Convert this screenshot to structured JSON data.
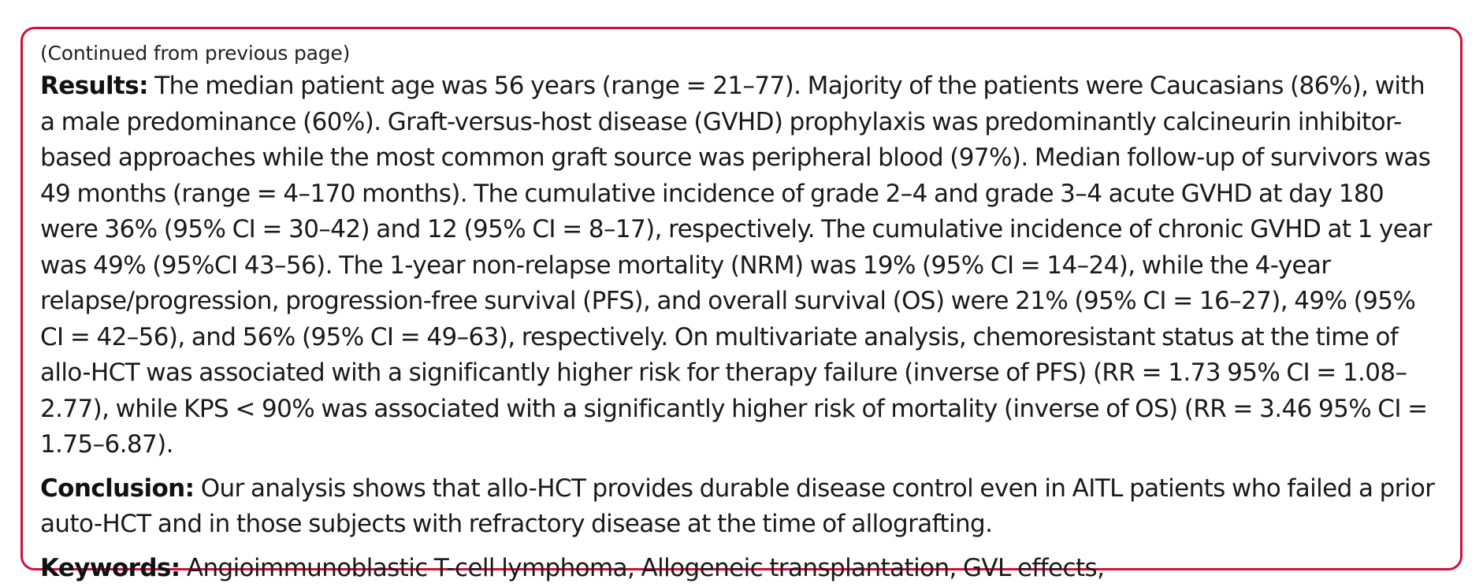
{
  "continued_note": "(Continued from previous page)",
  "results": {
    "label": "Results:",
    "text": "The median patient age was 56 years (range = 21–77). Majority of the patients were Caucasians (86%), with a male predominance (60%). Graft-versus-host disease (GVHD) prophylaxis was predominantly calcineurin inhibitor-based approaches while the most common graft source was peripheral blood (97%). Median follow-up of survivors was 49 months (range = 4–170 months). The cumulative incidence of grade 2–4 and grade 3–4 acute GVHD at day 180 were 36% (95% CI = 30–42) and 12 (95% CI = 8–17), respectively. The cumulative incidence of chronic GVHD at 1 year was 49% (95%CI 43–56). The 1-year non-relapse mortality (NRM) was 19% (95% CI = 14–24), while the 4-year relapse/progression, progression-free survival (PFS), and overall survival (OS) were 21% (95% CI = 16–27), 49% (95% CI = 42–56), and 56% (95% CI = 49–63), respectively. On multivariate analysis, chemoresistant status at the time of allo-HCT was associated with a significantly higher risk for therapy failure (inverse of PFS) (RR = 1.73 95% CI = 1.08–2.77), while KPS < 90% was associated with a significantly higher risk of mortality (inverse of OS) (RR = 3.46 95% CI = 1.75–6.87)."
  },
  "conclusion": {
    "label": "Conclusion:",
    "text": "Our analysis shows that allo-HCT provides durable disease control even in AITL patients who failed a prior auto-HCT and in those subjects with refractory disease at the time of allografting."
  },
  "keywords": {
    "label": "Keywords:",
    "text": "Angioimmunoblastic T-cell lymphoma, Allogeneic transplantation, GVL effects,"
  },
  "colors": {
    "border": "#d0103a",
    "text": "#1a1a1a"
  }
}
